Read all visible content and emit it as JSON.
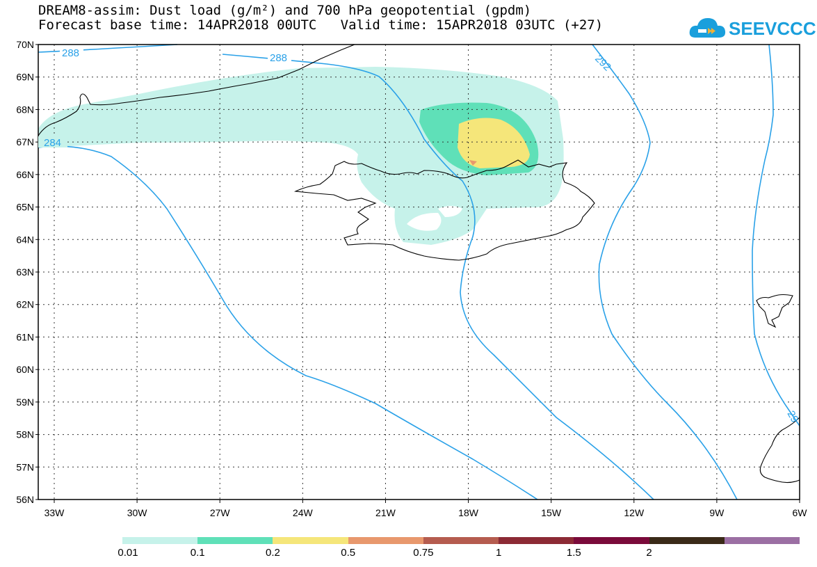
{
  "header": {
    "title_line1": "DREAM8-assim: Dust load (g/m²) and 700 hPa geopotential (gpdm)",
    "title_line2": "Forecast base time: 14APR2018 00UTC   Valid time: 15APR2018 03UTC (+27)"
  },
  "logo": {
    "text": "SEEVCCC",
    "icon": "cloud-icon",
    "color": "#1a9fdc"
  },
  "map": {
    "lat_labels": [
      "70N",
      "69N",
      "68N",
      "67N",
      "66N",
      "65N",
      "64N",
      "63N",
      "62N",
      "61N",
      "60N",
      "59N",
      "58N",
      "57N",
      "56N"
    ],
    "lon_labels": [
      "33W",
      "30W",
      "27W",
      "24W",
      "21W",
      "18W",
      "15W",
      "12W",
      "9W",
      "6W"
    ],
    "contour_labels": [
      "288",
      "288",
      "292",
      "284",
      "29"
    ],
    "contour_color": "#2aa1e8",
    "coastline_color": "#000000"
  },
  "colorbar": {
    "colors": [
      "#c6f2ea",
      "#5fe0b8",
      "#f5e67a",
      "#e8986d",
      "#b55c4f",
      "#8c2a35",
      "#7a0a3a",
      "#3a2a18",
      "#9b6fa3"
    ],
    "labels": [
      "0.01",
      "0.1",
      "0.2",
      "0.5",
      "0.75",
      "1",
      "1.5",
      "2"
    ]
  }
}
